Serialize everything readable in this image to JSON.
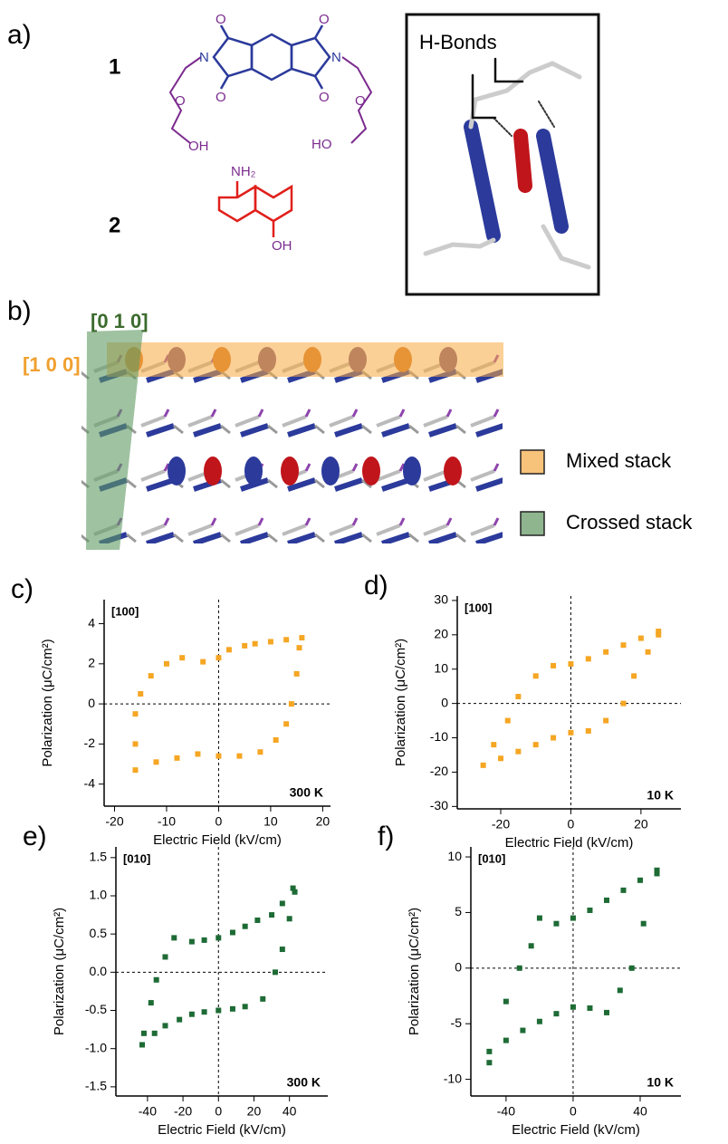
{
  "panel_a": {
    "label": "a)",
    "compound_1": "1",
    "compound_2": "2",
    "atoms_1": [
      "O",
      "O",
      "O",
      "O",
      "N",
      "N",
      "O",
      "O",
      "OH",
      "HO"
    ],
    "atoms_2": [
      "NH₂",
      "OH"
    ],
    "inset_label": "H-Bonds"
  },
  "panel_b": {
    "label": "b)",
    "direction_010": "[0 1 0]",
    "direction_100": "[1 0 0]",
    "legend": [
      {
        "name": "Mixed stack",
        "color": "#f7c27a"
      },
      {
        "name": "Crossed stack",
        "color": "#8fb58f"
      }
    ]
  },
  "chart_data": [
    {
      "type": "scatter",
      "label": "c)",
      "annotations": [
        "[100]",
        "300 K"
      ],
      "xlabel": "Electric Field  (kV/cm)",
      "ylabel": "Polarization (μC/cm²)",
      "color": "#f5a623",
      "x": [
        16,
        13,
        10,
        7,
        5,
        2,
        0,
        -3,
        -7,
        -10,
        -13,
        -15,
        -16,
        -16,
        -16,
        -12,
        -8,
        -4,
        0,
        4,
        8,
        11,
        13,
        14,
        15,
        15.5
      ],
      "values": [
        3.3,
        3.2,
        3.1,
        3.0,
        2.9,
        2.7,
        2.3,
        2.1,
        2.3,
        2.0,
        1.4,
        0.5,
        -0.5,
        -2,
        -3.3,
        -2.9,
        -2.7,
        -2.5,
        -2.6,
        -2.6,
        -2.4,
        -1.8,
        -1.0,
        0,
        1.5,
        2.8
      ],
      "xlim": [
        -22,
        21.5
      ],
      "ylim": [
        -5.1,
        5.2
      ],
      "xticks": [
        -20,
        -10,
        0,
        10,
        20
      ],
      "yticks": [
        4,
        2,
        0,
        -2,
        -4
      ]
    },
    {
      "type": "scatter",
      "label": "d)",
      "annotations": [
        "[100]",
        "10 K"
      ],
      "xlabel": "Electric Field  (kV/cm)",
      "ylabel": "Polarization (μC/cm²)",
      "color": "#f5a623",
      "x": [
        25,
        20,
        15,
        10,
        5,
        0,
        -5,
        -10,
        -15,
        -18,
        -22,
        -25,
        -20,
        -15,
        -10,
        -5,
        0,
        5,
        10,
        15,
        18,
        22,
        25
      ],
      "values": [
        21,
        19,
        17,
        15,
        13,
        11.5,
        11,
        8,
        2,
        -5,
        -12,
        -18,
        -16,
        -14,
        -12,
        -10,
        -8.5,
        -8,
        -5,
        0,
        8,
        15,
        20
      ],
      "xlim": [
        -32.4,
        31.4
      ],
      "ylim": [
        -30.7,
        31.3
      ],
      "xticks": [
        -20,
        0,
        20
      ],
      "yticks": [
        30,
        20,
        10,
        0,
        -10,
        -20,
        -30
      ]
    },
    {
      "type": "scatter",
      "label": "e)",
      "annotations": [
        "[010]",
        "300 K"
      ],
      "xlabel": "Electric Field  (kV/cm)",
      "ylabel": "Polarization (μC/cm²)",
      "color": "#1e6b35",
      "x": [
        42,
        36,
        30,
        22,
        15,
        8,
        0,
        -8,
        -15,
        -25,
        -30,
        -35,
        -38,
        -42,
        -43,
        -36,
        -30,
        -22,
        -15,
        -8,
        0,
        8,
        15,
        25,
        32,
        36,
        40,
        43
      ],
      "values": [
        1.1,
        0.9,
        0.75,
        0.68,
        0.6,
        0.52,
        0.45,
        0.42,
        0.4,
        0.45,
        0.2,
        -0.1,
        -0.4,
        -0.8,
        -0.95,
        -0.8,
        -0.7,
        -0.62,
        -0.55,
        -0.52,
        -0.5,
        -0.48,
        -0.45,
        -0.35,
        0,
        0.3,
        0.7,
        1.05
      ],
      "xlim": [
        -57.8,
        61.6
      ],
      "ylim": [
        -1.62,
        1.64
      ],
      "xticks": [
        -40,
        -20,
        0,
        20,
        40
      ],
      "yticks": [
        1.5,
        {
          "value": 1,
          "label": "1.0"
        },
        0.5,
        {
          "value": 0,
          "label": "0.0"
        },
        -0.5,
        {
          "value": -1,
          "label": "-1.0"
        },
        -1.5
      ]
    },
    {
      "type": "scatter",
      "label": "f)",
      "annotations": [
        "[010]",
        "10 K"
      ],
      "xlabel": "Electric Field  (kV/cm)",
      "ylabel": "Polarization (μC/cm²)",
      "color": "#1e6b35",
      "x": [
        50,
        40,
        30,
        20,
        10,
        0,
        -10,
        -20,
        -25,
        -32,
        -40,
        -50,
        -50,
        -40,
        -30,
        -20,
        -10,
        0,
        10,
        20,
        28,
        35,
        42,
        50
      ],
      "values": [
        8.8,
        7.9,
        7,
        6.1,
        5.2,
        4.5,
        4,
        4.5,
        2,
        0,
        -3,
        -7.5,
        -8.5,
        -6.5,
        -5.6,
        -4.8,
        -4.1,
        -3.5,
        -3.6,
        -4,
        -2,
        0,
        4,
        8.5
      ],
      "xlim": [
        -61,
        64.3
      ],
      "ylim": [
        -11.5,
        10.9
      ],
      "xticks": [
        -40,
        0,
        40
      ],
      "yticks": [
        10,
        5,
        0,
        -5,
        -10
      ]
    }
  ]
}
